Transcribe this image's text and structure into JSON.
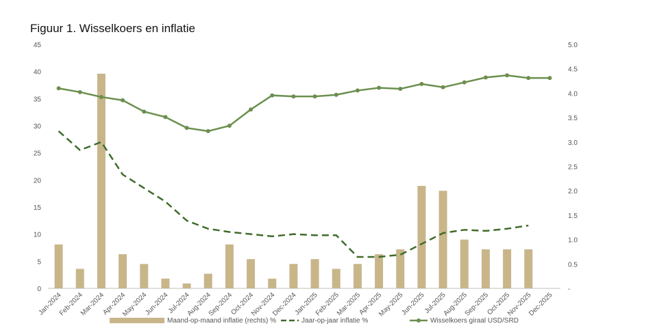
{
  "chart_data": {
    "type": "bar",
    "title": "Figuur 1. Wisselkoers en inflatie",
    "categories": [
      "Jan-2024",
      "Feb-2024",
      "Mar-2024",
      "Apr-2024",
      "May-2024",
      "Jun-2024",
      "Jul-2024",
      "Aug-2024",
      "Sep-2024",
      "Oct-2024",
      "Nov-2024",
      "Dec-2024",
      "Jan-2025",
      "Feb-2025",
      "Mar-2025",
      "Apr-2025",
      "May-2025",
      "Jun-2025",
      "Jul-2025",
      "Aug-2025",
      "Sep-2025",
      "Oct-2025",
      "Nov-2025",
      "Dec-2025"
    ],
    "left_axis": {
      "ylim": [
        0,
        45
      ],
      "ticks": [
        "0",
        "5",
        "10",
        "15",
        "20",
        "25",
        "30",
        "35",
        "40",
        "45"
      ]
    },
    "right_axis": {
      "ylim": [
        0,
        5
      ],
      "ticks": [
        "-",
        "0.5",
        "1.0",
        "1.5",
        "2.0",
        "2.5",
        "3.0",
        "3.5",
        "4.0",
        "4.5",
        "5.0"
      ]
    },
    "series": [
      {
        "name": "Maand-op-maand inflatie (rechts) %",
        "kind": "bar",
        "axis": "right",
        "color": "#c8b68a",
        "values": [
          0.9,
          0.4,
          4.4,
          0.7,
          0.5,
          0.2,
          0.1,
          0.3,
          0.9,
          0.6,
          0.2,
          0.5,
          0.6,
          0.4,
          0.5,
          0.7,
          0.8,
          2.1,
          2.0,
          1.0,
          0.8,
          0.8,
          0.8,
          null
        ]
      },
      {
        "name": "Jaar-op-jaar inflatie %",
        "kind": "line-dashed",
        "axis": "left",
        "color": "#3f6b2a",
        "values": [
          29,
          25.5,
          27,
          21,
          18.5,
          16,
          12.5,
          11,
          10.4,
          10,
          9.6,
          10,
          9.8,
          9.8,
          5.8,
          5.8,
          6.2,
          8.2,
          10.2,
          10.8,
          10.6,
          11,
          11.6,
          null
        ]
      },
      {
        "name": "Wisselkoers giraal USD/SRD",
        "kind": "line-marker",
        "axis": "left",
        "color": "#6b8f4e",
        "values": [
          36.9,
          36.2,
          35.3,
          34.7,
          32.6,
          31.6,
          29.6,
          29.0,
          30.0,
          33.0,
          35.6,
          35.4,
          35.4,
          35.7,
          36.5,
          37.0,
          36.8,
          37.7,
          37.1,
          38.0,
          38.9,
          39.3,
          38.8,
          38.8
        ]
      }
    ]
  }
}
